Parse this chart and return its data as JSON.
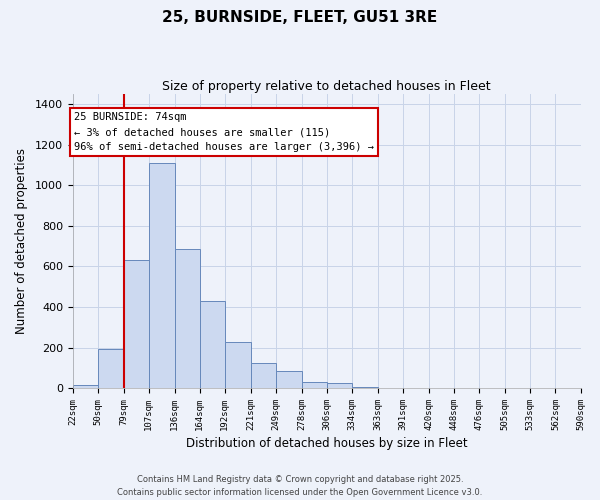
{
  "title": "25, BURNSIDE, FLEET, GU51 3RE",
  "subtitle": "Size of property relative to detached houses in Fleet",
  "xlabel": "Distribution of detached houses by size in Fleet",
  "ylabel": "Number of detached properties",
  "bar_values": [
    15,
    195,
    630,
    1110,
    685,
    430,
    225,
    125,
    85,
    30,
    25,
    5,
    2,
    0,
    0,
    0,
    0,
    0,
    0,
    0
  ],
  "bin_labels": [
    "22sqm",
    "50sqm",
    "79sqm",
    "107sqm",
    "136sqm",
    "164sqm",
    "192sqm",
    "221sqm",
    "249sqm",
    "278sqm",
    "306sqm",
    "334sqm",
    "363sqm",
    "391sqm",
    "420sqm",
    "448sqm",
    "476sqm",
    "505sqm",
    "533sqm",
    "562sqm",
    "590sqm"
  ],
  "bar_color": "#ccd9f0",
  "bar_edge_color": "#6688bb",
  "grid_color": "#c8d4e8",
  "background_color": "#eef2fa",
  "vline_x": 79,
  "vline_color": "#cc0000",
  "annotation_title": "25 BURNSIDE: 74sqm",
  "annotation_line1": "← 3% of detached houses are smaller (115)",
  "annotation_line2": "96% of semi-detached houses are larger (3,396) →",
  "annotation_box_color": "#ffffff",
  "annotation_box_edge": "#cc0000",
  "ylim": [
    0,
    1450
  ],
  "yticks": [
    0,
    200,
    400,
    600,
    800,
    1000,
    1200,
    1400
  ],
  "footer1": "Contains HM Land Registry data © Crown copyright and database right 2025.",
  "footer2": "Contains public sector information licensed under the Open Government Licence v3.0.",
  "bin_edges": [
    22,
    50,
    79,
    107,
    136,
    164,
    192,
    221,
    249,
    278,
    306,
    334,
    363,
    391,
    420,
    448,
    476,
    505,
    533,
    562,
    590
  ]
}
